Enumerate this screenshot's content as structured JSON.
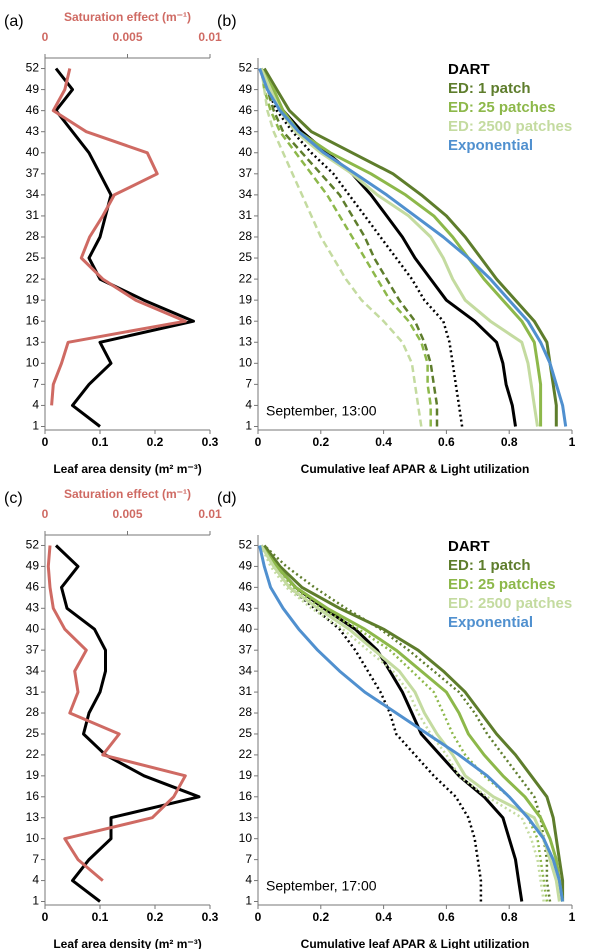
{
  "chart_data": [
    {
      "type": "line",
      "label": "(a)",
      "xlabel": "Leaf area density (m² m⁻³)",
      "x2label": "Saturation effect (m⁻¹)",
      "y": [
        1,
        4,
        7,
        10,
        13,
        16,
        19,
        22,
        25,
        28,
        31,
        34,
        37,
        40,
        43,
        46,
        49,
        52
      ],
      "ylim": [
        0.5,
        53.5
      ],
      "yticks": [
        1,
        4,
        7,
        10,
        13,
        16,
        19,
        22,
        25,
        28,
        31,
        34,
        37,
        40,
        43,
        46,
        49,
        52
      ],
      "xlim": [
        0,
        0.3
      ],
      "xticks": [
        0,
        0.1,
        0.2,
        0.3
      ],
      "x2lim": [
        0,
        0.01
      ],
      "x2ticks": [
        0,
        0.005,
        0.01
      ],
      "x2color": "#cf6a63",
      "series": [
        {
          "color": "#000000",
          "values": [
            0.1,
            0.05,
            0.08,
            0.12,
            0.1,
            0.27,
            0.18,
            0.1,
            0.08,
            0.1,
            0.11,
            0.12,
            0.1,
            0.08,
            0.05,
            0.02,
            0.05,
            0.02
          ]
        },
        {
          "color": "#cf6a63",
          "axis": "x2",
          "values": [
            null,
            0.0004,
            0.0005,
            0.001,
            0.0014,
            0.0085,
            0.0055,
            0.0035,
            0.0022,
            0.0027,
            0.0035,
            0.0042,
            0.0068,
            0.0062,
            0.0025,
            0.0005,
            0.0012,
            0.0015
          ]
        }
      ]
    },
    {
      "type": "line",
      "label": "(b)",
      "xlabel": "Cumulative leaf APAR & Light utilization",
      "annotation": "September, 13:00",
      "legend": "upper right",
      "y": [
        1,
        4,
        7,
        10,
        13,
        16,
        19,
        22,
        25,
        28,
        31,
        34,
        37,
        40,
        43,
        46,
        49,
        52
      ],
      "ylim": [
        0.5,
        53.5
      ],
      "yticks": [
        1,
        4,
        7,
        10,
        13,
        16,
        19,
        22,
        25,
        28,
        31,
        34,
        37,
        40,
        43,
        46,
        49,
        52
      ],
      "xlim": [
        0,
        1
      ],
      "xticks": [
        0,
        0.2,
        0.4,
        0.6,
        0.8,
        1
      ],
      "series": [
        {
          "name": "DART",
          "color": "#000000",
          "values": [
            0.82,
            0.81,
            0.79,
            0.78,
            0.76,
            0.69,
            0.6,
            0.55,
            0.5,
            0.46,
            0.41,
            0.36,
            0.3,
            0.22,
            0.14,
            0.08,
            0.04,
            0.01
          ],
          "light_utilization": [
            0.65,
            0.64,
            0.63,
            0.62,
            0.61,
            0.59,
            0.53,
            0.49,
            0.44,
            0.39,
            0.34,
            0.29,
            0.24,
            0.17,
            0.11,
            0.06,
            0.03,
            0.01
          ],
          "light_style": "dotted"
        },
        {
          "name": "ED: 1 patch",
          "color": "#5e7d2c",
          "values": [
            0.95,
            0.95,
            0.94,
            0.93,
            0.92,
            0.88,
            0.82,
            0.76,
            0.71,
            0.66,
            0.6,
            0.52,
            0.43,
            0.3,
            0.17,
            0.1,
            0.06,
            0.02
          ],
          "light_utilization": [
            0.57,
            0.57,
            0.56,
            0.55,
            0.53,
            0.5,
            0.45,
            0.41,
            0.37,
            0.34,
            0.3,
            0.26,
            0.2,
            0.14,
            0.08,
            0.05,
            0.03,
            0.01
          ],
          "light_style": "dashed"
        },
        {
          "name": "ED: 25 patches",
          "color": "#8db84a",
          "values": [
            0.9,
            0.9,
            0.9,
            0.89,
            0.88,
            0.84,
            0.78,
            0.72,
            0.67,
            0.62,
            0.56,
            0.47,
            0.36,
            0.23,
            0.13,
            0.08,
            0.05,
            0.01
          ],
          "light_utilization": [
            0.55,
            0.55,
            0.54,
            0.54,
            0.52,
            0.48,
            0.42,
            0.38,
            0.34,
            0.3,
            0.26,
            0.22,
            0.17,
            0.12,
            0.07,
            0.04,
            0.02,
            0.01
          ],
          "light_style": "dashed"
        },
        {
          "name": "ED: 2500 patches",
          "color": "#c4dba0",
          "values": [
            0.89,
            0.88,
            0.87,
            0.86,
            0.84,
            0.74,
            0.66,
            0.62,
            0.59,
            0.55,
            0.48,
            0.38,
            0.3,
            0.2,
            0.12,
            0.07,
            0.04,
            0.01
          ],
          "light_utilization": [
            0.52,
            0.51,
            0.5,
            0.49,
            0.46,
            0.4,
            0.33,
            0.28,
            0.24,
            0.2,
            0.17,
            0.14,
            0.11,
            0.08,
            0.05,
            0.03,
            0.02,
            0.01
          ],
          "light_style": "dashed"
        },
        {
          "name": "Exponential",
          "color": "#5090cf",
          "values": [
            0.98,
            0.97,
            0.95,
            0.93,
            0.9,
            0.86,
            0.8,
            0.74,
            0.67,
            0.59,
            0.5,
            0.41,
            0.31,
            0.21,
            0.13,
            0.07,
            0.03,
            0.005
          ]
        }
      ]
    },
    {
      "type": "line",
      "label": "(c)",
      "xlabel": "Leaf area density (m² m⁻³)",
      "x2label": "Saturation effect (m⁻¹)",
      "y": [
        1,
        4,
        7,
        10,
        13,
        16,
        19,
        22,
        25,
        28,
        31,
        34,
        37,
        40,
        43,
        46,
        49,
        52
      ],
      "ylim": [
        0.5,
        53.5
      ],
      "yticks": [
        1,
        4,
        7,
        10,
        13,
        16,
        19,
        22,
        25,
        28,
        31,
        34,
        37,
        40,
        43,
        46,
        49,
        52
      ],
      "xlim": [
        0,
        0.3
      ],
      "xticks": [
        0,
        0.1,
        0.2,
        0.3
      ],
      "x2lim": [
        0,
        0.01
      ],
      "x2ticks": [
        0,
        0.005,
        0.01
      ],
      "x2color": "#cf6a63",
      "series": [
        {
          "color": "#000000",
          "values": [
            0.1,
            0.05,
            0.08,
            0.12,
            0.12,
            0.28,
            0.18,
            0.11,
            0.07,
            0.08,
            0.1,
            0.11,
            0.11,
            0.09,
            0.04,
            0.03,
            0.06,
            0.02
          ]
        },
        {
          "color": "#cf6a63",
          "axis": "x2",
          "values": [
            null,
            0.0035,
            0.002,
            0.0012,
            0.0065,
            0.0078,
            0.0085,
            0.0035,
            0.0045,
            0.0015,
            0.002,
            0.0018,
            0.0025,
            0.0012,
            0.0005,
            0.0003,
            0.0002,
            0.0003
          ]
        }
      ]
    },
    {
      "type": "line",
      "label": "(d)",
      "xlabel": "Cumulative leaf APAR & Light utilization",
      "annotation": "September, 17:00",
      "legend": "upper right",
      "y": [
        1,
        4,
        7,
        10,
        13,
        16,
        19,
        22,
        25,
        28,
        31,
        34,
        37,
        40,
        43,
        46,
        49,
        52
      ],
      "ylim": [
        0.5,
        53.5
      ],
      "yticks": [
        1,
        4,
        7,
        10,
        13,
        16,
        19,
        22,
        25,
        28,
        31,
        34,
        37,
        40,
        43,
        46,
        49,
        52
      ],
      "xlim": [
        0,
        1
      ],
      "xticks": [
        0,
        0.2,
        0.4,
        0.6,
        0.8,
        1
      ],
      "series": [
        {
          "name": "DART",
          "color": "#000000",
          "values": [
            0.84,
            0.83,
            0.82,
            0.8,
            0.78,
            0.72,
            0.64,
            0.58,
            0.52,
            0.49,
            0.46,
            0.42,
            0.38,
            0.31,
            0.21,
            0.12,
            0.06,
            0.01
          ],
          "light_utilization": [
            0.71,
            0.71,
            0.7,
            0.69,
            0.67,
            0.63,
            0.56,
            0.5,
            0.44,
            0.42,
            0.39,
            0.35,
            0.31,
            0.26,
            0.18,
            0.1,
            0.05,
            0.01
          ],
          "light_style": "dotted"
        },
        {
          "name": "ED: 1 patch",
          "color": "#5e7d2c",
          "values": [
            0.97,
            0.97,
            0.96,
            0.95,
            0.94,
            0.92,
            0.87,
            0.82,
            0.76,
            0.71,
            0.66,
            0.59,
            0.51,
            0.4,
            0.26,
            0.14,
            0.07,
            0.02
          ],
          "light_utilization": [
            0.93,
            0.92,
            0.92,
            0.91,
            0.9,
            0.88,
            0.83,
            0.78,
            0.73,
            0.69,
            0.64,
            0.56,
            0.48,
            0.39,
            0.28,
            0.18,
            0.09,
            0.02
          ],
          "light_style": "dotted"
        },
        {
          "name": "ED: 25 patches",
          "color": "#8db84a",
          "values": [
            0.97,
            0.96,
            0.95,
            0.93,
            0.9,
            0.85,
            0.78,
            0.72,
            0.67,
            0.64,
            0.6,
            0.52,
            0.44,
            0.34,
            0.22,
            0.12,
            0.06,
            0.01
          ],
          "light_utilization": [
            0.92,
            0.91,
            0.9,
            0.89,
            0.86,
            0.8,
            0.72,
            0.66,
            0.62,
            0.59,
            0.56,
            0.49,
            0.42,
            0.32,
            0.2,
            0.11,
            0.05,
            0.01
          ],
          "light_style": "dotted"
        },
        {
          "name": "ED: 2500 patches",
          "color": "#c4dba0",
          "values": [
            0.96,
            0.95,
            0.93,
            0.91,
            0.88,
            0.75,
            0.66,
            0.62,
            0.57,
            0.53,
            0.5,
            0.45,
            0.37,
            0.29,
            0.19,
            0.1,
            0.05,
            0.01
          ],
          "light_utilization": [
            0.91,
            0.9,
            0.89,
            0.87,
            0.84,
            0.73,
            0.64,
            0.6,
            0.55,
            0.51,
            0.48,
            0.43,
            0.35,
            0.27,
            0.17,
            0.09,
            0.04,
            0.01
          ],
          "light_style": "dotted"
        },
        {
          "name": "Exponential",
          "color": "#5090cf",
          "values": [
            0.97,
            0.96,
            0.94,
            0.91,
            0.86,
            0.8,
            0.73,
            0.64,
            0.54,
            0.44,
            0.34,
            0.26,
            0.19,
            0.13,
            0.08,
            0.04,
            0.02,
            0.005
          ]
        }
      ]
    }
  ]
}
